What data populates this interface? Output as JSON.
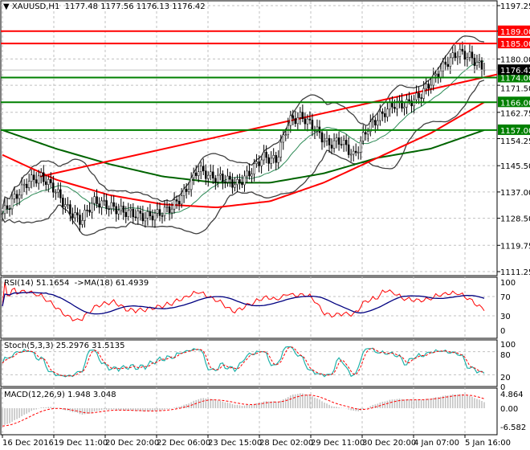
{
  "chart_data": {
    "type": "candlestick",
    "symbol_header": "XAUUSD,H1  1177.48 1177.56 1176.13 1176.42",
    "price_ticks": [
      "1197.25",
      "1189.00",
      "1180.00",
      "1171.50",
      "1162.75",
      "1154.25",
      "1145.50",
      "1137.00",
      "1128.50",
      "1119.75",
      "1111.25"
    ],
    "ylim": [
      1111.25,
      1197.25
    ],
    "time_ticks": [
      "16 Dec 2016",
      "19 Dec 11:00",
      "20 Dec 20:00",
      "22 Dec 06:00",
      "23 Dec 15:00",
      "28 Dec 02:00",
      "29 Dec 11:00",
      "30 Dec 20:00",
      "4 Jan 07:00",
      "5 Jan 16:00"
    ],
    "close_path": [
      1130,
      1135.4,
      1140.6,
      1141.9,
      1138,
      1131.5,
      1127.6,
      1134,
      1132.8,
      1131,
      1130,
      1128.9,
      1130,
      1132,
      1136.7,
      1144.5,
      1141.9,
      1141.4,
      1139.3,
      1143.2,
      1148.4,
      1147.1,
      1160,
      1161.4,
      1157.5,
      1152.3,
      1153.6,
      1148.4,
      1157.5,
      1161.4,
      1165.3,
      1165.3,
      1167.9,
      1173,
      1178.3,
      1182.2,
      1180.5,
      1176.42
    ],
    "levels": [
      {
        "value": 1189.0,
        "label": "1189.00",
        "color": "#ff0000"
      },
      {
        "value": 1185.0,
        "label": "1185.00",
        "color": "#ff0000"
      },
      {
        "value": 1174.0,
        "label": "1174.00",
        "color": "#008000"
      },
      {
        "value": 1166.0,
        "label": "1166.00",
        "color": "#008000"
      },
      {
        "value": 1157.0,
        "label": "1157.00",
        "color": "#008000"
      }
    ],
    "current_price": {
      "value": 1176.42,
      "label": "1176.42",
      "color": "#000000"
    },
    "red_ma": [
      1149,
      1141,
      1136,
      1133,
      1132,
      1134,
      1140,
      1148,
      1156,
      1166
    ],
    "green_ma": [
      1157,
      1151,
      1146,
      1142,
      1140,
      1140,
      1143,
      1148,
      1151,
      1157
    ],
    "trendline": {
      "from": 1142,
      "to": 1175,
      "color": "#ff0000"
    },
    "rsi": {
      "label": "RSI(14) 51.1654  ->MA(18) 61.4939",
      "ticks": [
        "100",
        "70",
        "30",
        "0"
      ],
      "colors": [
        "#ff0000",
        "#000080"
      ]
    },
    "stoch": {
      "label": "Stoch(5,3,3) 25.2976 31.5135",
      "ticks": [
        "100",
        "80",
        "20",
        "0"
      ],
      "colors": [
        "#20b2aa",
        "#ff0000"
      ]
    },
    "macd": {
      "label": "MACD(12,26,9) 1.948 3.048",
      "ticks": [
        "4.864",
        "0.00",
        "-6.582"
      ],
      "colors": [
        "#c0c0c0",
        "#ff0000"
      ]
    }
  }
}
